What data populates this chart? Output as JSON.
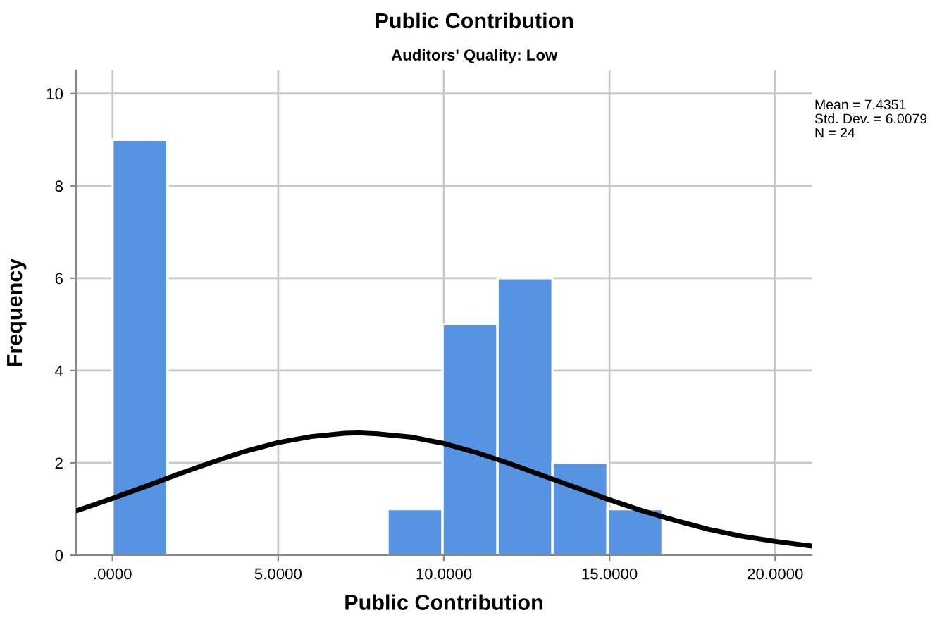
{
  "chart_data": {
    "type": "histogram",
    "title": "Public Contribution",
    "subtitle": "Auditors' Quality: Low",
    "xlabel": "Public Contribution",
    "ylabel": "Frequency",
    "series": [
      {
        "color": "#5694e3",
        "bins": [
          0,
          1.66,
          3.32,
          4.98,
          6.64,
          8.3,
          9.96,
          11.62,
          13.28,
          14.94,
          16.6
        ],
        "values": [
          9,
          0,
          0,
          0,
          0,
          1,
          5,
          6,
          2,
          1
        ]
      },
      {
        "type": "line",
        "color": "#000000",
        "x": [
          -1.1,
          0,
          1,
          2,
          3,
          4,
          5,
          6,
          7,
          7.44,
          8,
          9,
          10,
          11,
          12,
          13,
          14,
          15,
          16,
          17,
          18,
          19,
          20,
          21.1
        ],
        "values": [
          0.96,
          1.23,
          1.49,
          1.76,
          2.01,
          2.25,
          2.44,
          2.57,
          2.64,
          2.65,
          2.63,
          2.56,
          2.42,
          2.22,
          1.98,
          1.72,
          1.46,
          1.2,
          0.96,
          0.75,
          0.56,
          0.41,
          0.3,
          0.2
        ]
      }
    ],
    "xlim": [
      -1.1,
      21.1
    ],
    "xticks": [
      {
        "value": 0,
        "label": ".0000"
      },
      {
        "value": 5,
        "label": "5.0000"
      },
      {
        "value": 10,
        "label": "10.0000"
      },
      {
        "value": 15,
        "label": "15.0000"
      },
      {
        "value": 20,
        "label": "20.0000"
      }
    ],
    "ylim": [
      0,
      10.5
    ],
    "yticks": [
      0,
      2,
      4,
      6,
      8,
      10
    ],
    "grid": true,
    "annotations": [
      "Mean = 7.4351",
      "Std. Dev. = 6.0079",
      "N = 24"
    ]
  }
}
